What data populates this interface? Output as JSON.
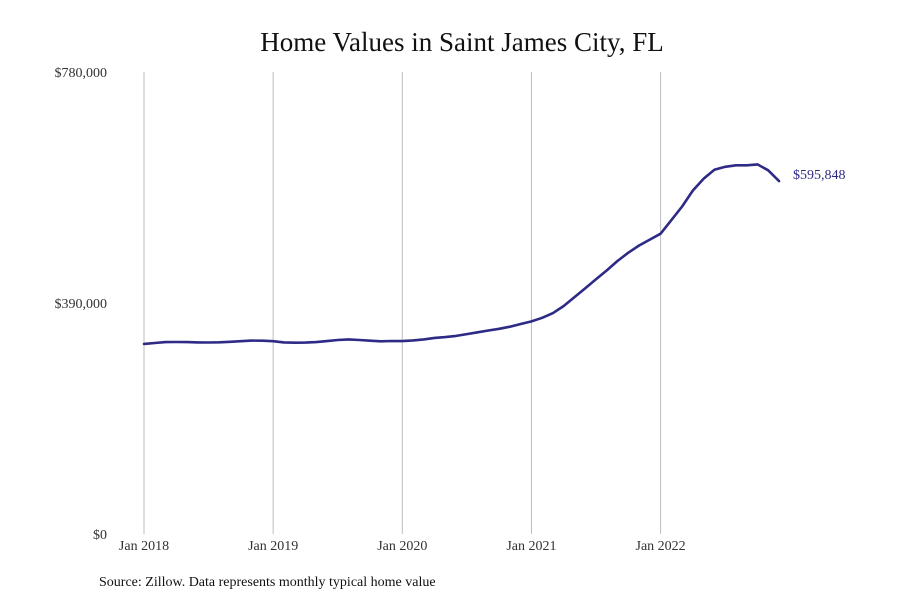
{
  "chart_data": {
    "type": "line",
    "title": "Home Values in Saint James City, FL",
    "xlabel": "",
    "ylabel": "",
    "ylim": [
      0,
      780000
    ],
    "yticks": [
      0,
      390000,
      780000
    ],
    "ytick_labels": [
      "$0",
      "$390,000",
      "$780,000"
    ],
    "xticks": [
      "2018-01",
      "2019-01",
      "2020-01",
      "2021-01",
      "2022-01"
    ],
    "xtick_labels": [
      "Jan 2018",
      "Jan 2019",
      "Jan 2020",
      "Jan 2021",
      "Jan 2022"
    ],
    "xlim": [
      "2018-01",
      "2022-12"
    ],
    "grid": "vertical",
    "legend": "none",
    "series": [
      {
        "color": "#2e2a86",
        "end_label": "$595,848",
        "x": [
          "2018-01",
          "2018-02",
          "2018-03",
          "2018-04",
          "2018-05",
          "2018-06",
          "2018-07",
          "2018-08",
          "2018-09",
          "2018-10",
          "2018-11",
          "2018-12",
          "2019-01",
          "2019-02",
          "2019-03",
          "2019-04",
          "2019-05",
          "2019-06",
          "2019-07",
          "2019-08",
          "2019-09",
          "2019-10",
          "2019-11",
          "2019-12",
          "2020-01",
          "2020-02",
          "2020-03",
          "2020-04",
          "2020-05",
          "2020-06",
          "2020-07",
          "2020-08",
          "2020-09",
          "2020-10",
          "2020-11",
          "2020-12",
          "2021-01",
          "2021-02",
          "2021-03",
          "2021-04",
          "2021-05",
          "2021-06",
          "2021-07",
          "2021-08",
          "2021-09",
          "2021-10",
          "2021-11",
          "2021-12",
          "2022-01",
          "2022-02",
          "2022-03",
          "2022-04",
          "2022-05",
          "2022-06",
          "2022-07",
          "2022-08",
          "2022-09",
          "2022-10",
          "2022-11",
          "2022-12"
        ],
        "y": [
          321000,
          322500,
          324000,
          324200,
          324000,
          323500,
          323300,
          323700,
          324500,
          325500,
          326500,
          326300,
          325500,
          323500,
          323000,
          323200,
          324000,
          325700,
          327500,
          328500,
          327500,
          326300,
          325300,
          325800,
          325600,
          326800,
          328500,
          331000,
          332500,
          334500,
          337500,
          340500,
          343500,
          346500,
          350000,
          354500,
          359000,
          365000,
          373000,
          385000,
          400000,
          415000,
          430000,
          445000,
          461000,
          475000,
          487000,
          497000,
          507000,
          530000,
          553000,
          580000,
          600000,
          615000,
          620000,
          622500,
          622500,
          624000,
          614000,
          595848
        ]
      }
    ]
  },
  "footer": {
    "source": "Source: Zillow. Data represents monthly typical home value"
  }
}
